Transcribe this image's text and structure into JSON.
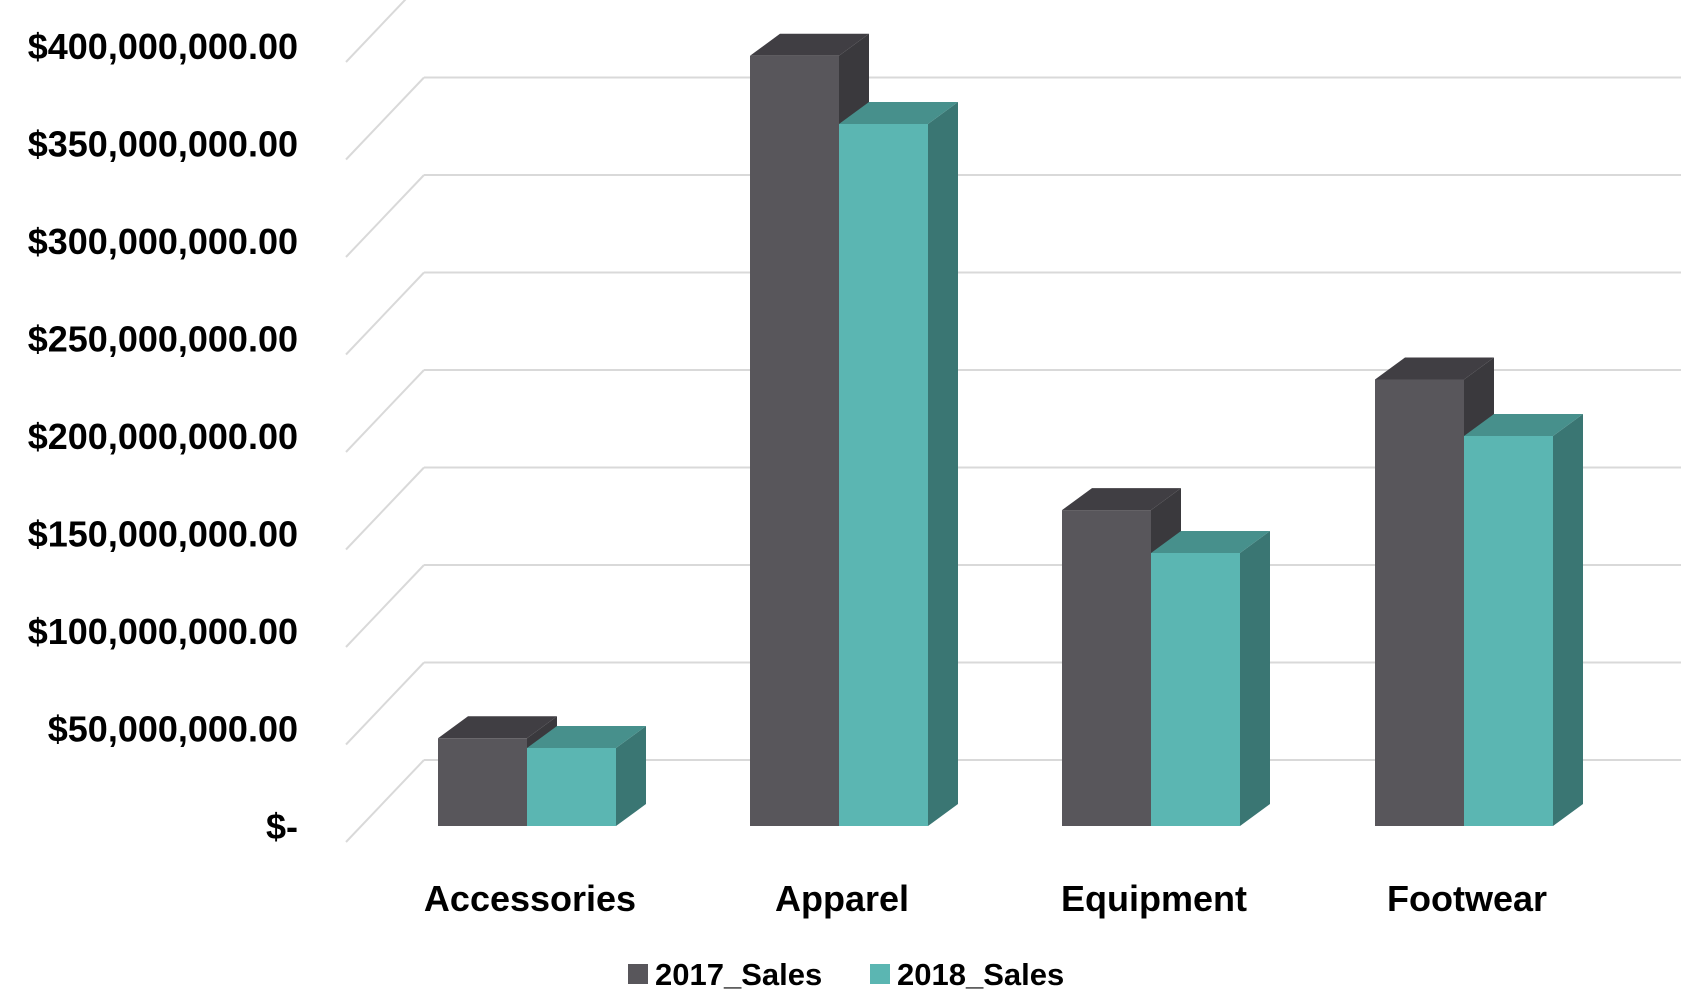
{
  "chart_data": {
    "type": "bar",
    "categories": [
      "Accessories",
      "Apparel",
      "Equipment",
      "Footwear"
    ],
    "series": [
      {
        "name": "2017_Sales",
        "values": [
          45000000,
          395000000,
          162000000,
          229000000
        ],
        "color": "#58565b",
        "top_color": "#403e43",
        "side_color": "#3a393d"
      },
      {
        "name": "2018_Sales",
        "values": [
          40000000,
          360000000,
          140000000,
          200000000
        ],
        "color": "#5bb6b2",
        "top_color": "#47908c",
        "side_color": "#3a7673"
      }
    ],
    "ylim": [
      0,
      400000000
    ],
    "yticks": [
      0,
      50000000,
      100000000,
      150000000,
      200000000,
      250000000,
      300000000,
      350000000,
      400000000
    ],
    "ytick_labels": [
      "$-",
      "$50,000,000.00",
      "$100,000,000.00",
      "$150,000,000.00",
      "$200,000,000.00",
      "$250,000,000.00",
      "$300,000,000.00",
      "$350,000,000.00",
      "$400,000,000.00"
    ],
    "title": "",
    "xlabel": "",
    "ylabel": "",
    "grid": true,
    "legend_position": "bottom",
    "style": "3d-clustered-column"
  }
}
